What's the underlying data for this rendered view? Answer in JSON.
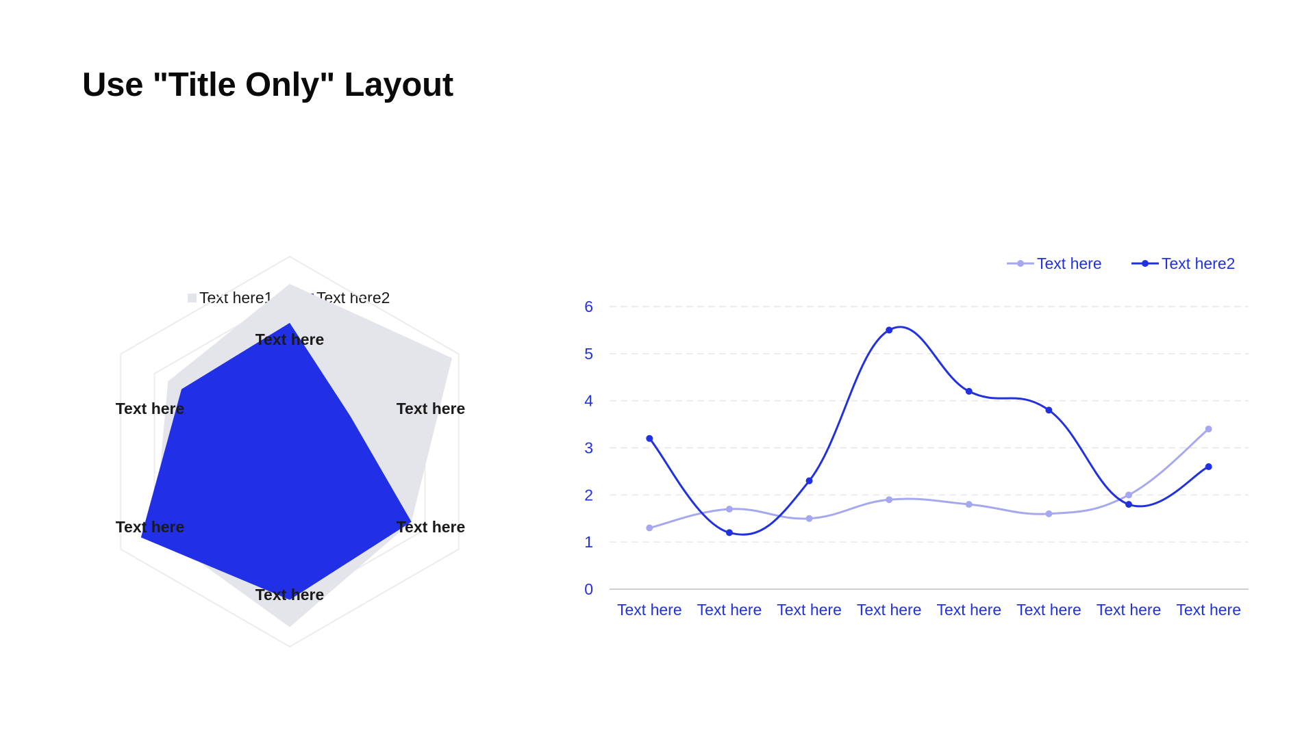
{
  "slide": {
    "title": "Use \"Title Only\" Layout"
  },
  "colors": {
    "radar_series1": "#e4e5ea",
    "radar_series2": "#2130e6",
    "radar_grid": "#ececec",
    "line_series1": "#a6a8ef",
    "line_series2": "#2130e0",
    "axis_text": "#2130e0",
    "grid": "#e6e6e6",
    "axis_line": "#cfcfcf"
  },
  "chart_data": [
    {
      "type": "radar",
      "axes": [
        "Text here",
        "Text here",
        "Text here",
        "Text here",
        "Text here",
        "Text here"
      ],
      "range": [
        0,
        5
      ],
      "series": [
        {
          "name": "Text here1",
          "values": [
            4.3,
            4.8,
            3.6,
            4.5,
            4.0,
            3.6
          ]
        },
        {
          "name": "Text here2",
          "values": [
            3.3,
            1.8,
            3.6,
            3.8,
            4.4,
            3.2
          ]
        }
      ],
      "legend": "top"
    },
    {
      "type": "line",
      "categories": [
        "Text here",
        "Text here",
        "Text here",
        "Text here",
        "Text here",
        "Text here",
        "Text here",
        "Text here"
      ],
      "series": [
        {
          "name": "Text here",
          "values": [
            1.3,
            1.7,
            1.5,
            1.9,
            1.8,
            1.6,
            2.0,
            3.4
          ]
        },
        {
          "name": "Text here2",
          "values": [
            3.2,
            1.2,
            2.3,
            5.5,
            4.2,
            3.8,
            1.8,
            2.6
          ]
        }
      ],
      "yticks": [
        "0",
        "1",
        "2",
        "3",
        "4",
        "5",
        "6"
      ],
      "ylim": [
        0,
        6
      ],
      "smooth": true,
      "grid": true,
      "legend": "top-right"
    }
  ]
}
